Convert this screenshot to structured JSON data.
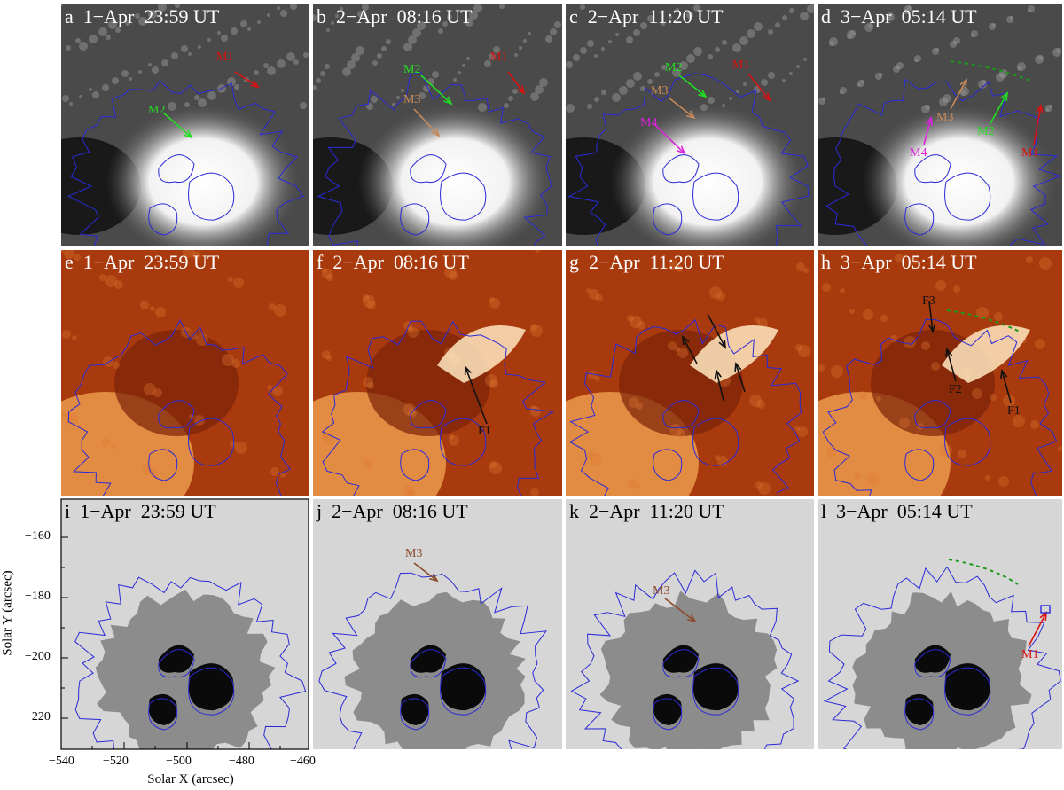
{
  "figure": {
    "panels": [
      {
        "id": "a",
        "row": "hmi",
        "label": "a  1−Apr  23:59 UT",
        "features": [
          {
            "text": "M1",
            "color": "#dd1111"
          },
          {
            "text": "M2",
            "color": "#22dd22"
          }
        ]
      },
      {
        "id": "b",
        "row": "hmi",
        "label": "b  2−Apr  08:16 UT",
        "features": [
          {
            "text": "M1",
            "color": "#dd1111"
          },
          {
            "text": "M2",
            "color": "#22dd22"
          },
          {
            "text": "M3",
            "color": "#c98a5a"
          }
        ]
      },
      {
        "id": "c",
        "row": "hmi",
        "label": "c  2−Apr  11:20 UT",
        "features": [
          {
            "text": "M1",
            "color": "#dd1111"
          },
          {
            "text": "M2",
            "color": "#22dd22"
          },
          {
            "text": "M3",
            "color": "#c98a5a"
          },
          {
            "text": "M4",
            "color": "#dd22dd"
          }
        ]
      },
      {
        "id": "d",
        "row": "hmi",
        "label": "d  3−Apr  05:14 UT",
        "features": [
          {
            "text": "M1",
            "color": "#dd1111"
          },
          {
            "text": "M2",
            "color": "#22dd22"
          },
          {
            "text": "M3",
            "color": "#c98a5a"
          },
          {
            "text": "M4",
            "color": "#dd22dd"
          }
        ]
      },
      {
        "id": "e",
        "row": "aia",
        "label": "e  1−Apr  23:59 UT",
        "features": []
      },
      {
        "id": "f",
        "row": "aia",
        "label": "f  2−Apr  08:16 UT",
        "features": [
          {
            "text": "F1",
            "color": "#111111"
          }
        ]
      },
      {
        "id": "g",
        "row": "aia",
        "label": "g  2−Apr  11:20 UT",
        "features": []
      },
      {
        "id": "h",
        "row": "aia",
        "label": "h  3−Apr  05:14 UT",
        "features": [
          {
            "text": "F3",
            "color": "#111111"
          },
          {
            "text": "F2",
            "color": "#111111"
          },
          {
            "text": "F1",
            "color": "#111111"
          }
        ]
      },
      {
        "id": "i",
        "row": "cont",
        "label": "i  1−Apr  23:59 UT",
        "features": []
      },
      {
        "id": "j",
        "row": "cont",
        "label": "j  2−Apr  08:16 UT",
        "features": [
          {
            "text": "M3",
            "color": "#8b4a2b"
          }
        ]
      },
      {
        "id": "k",
        "row": "cont",
        "label": "k  2−Apr  11:20 UT",
        "features": [
          {
            "text": "M3",
            "color": "#8b4a2b"
          }
        ]
      },
      {
        "id": "l",
        "row": "cont",
        "label": "l  3−Apr  05:14 UT",
        "features": [
          {
            "text": "M1",
            "color": "#dd1111"
          }
        ]
      }
    ],
    "axes": {
      "xlabel": "Solar X (arcsec)",
      "ylabel": "Solar Y (arcsec)",
      "xticks": [
        "−540",
        "−520",
        "−500",
        "−480",
        "−460"
      ],
      "yticks": [
        "−160",
        "−180",
        "−200",
        "−220"
      ]
    },
    "colors": {
      "contour": "#2a2ad8",
      "hmi_background": "#4a4a4a",
      "aia_background": "#a83a0e",
      "continuum_background": "#d6d6d6",
      "ribbon_dash": "#1a9a1a"
    }
  }
}
